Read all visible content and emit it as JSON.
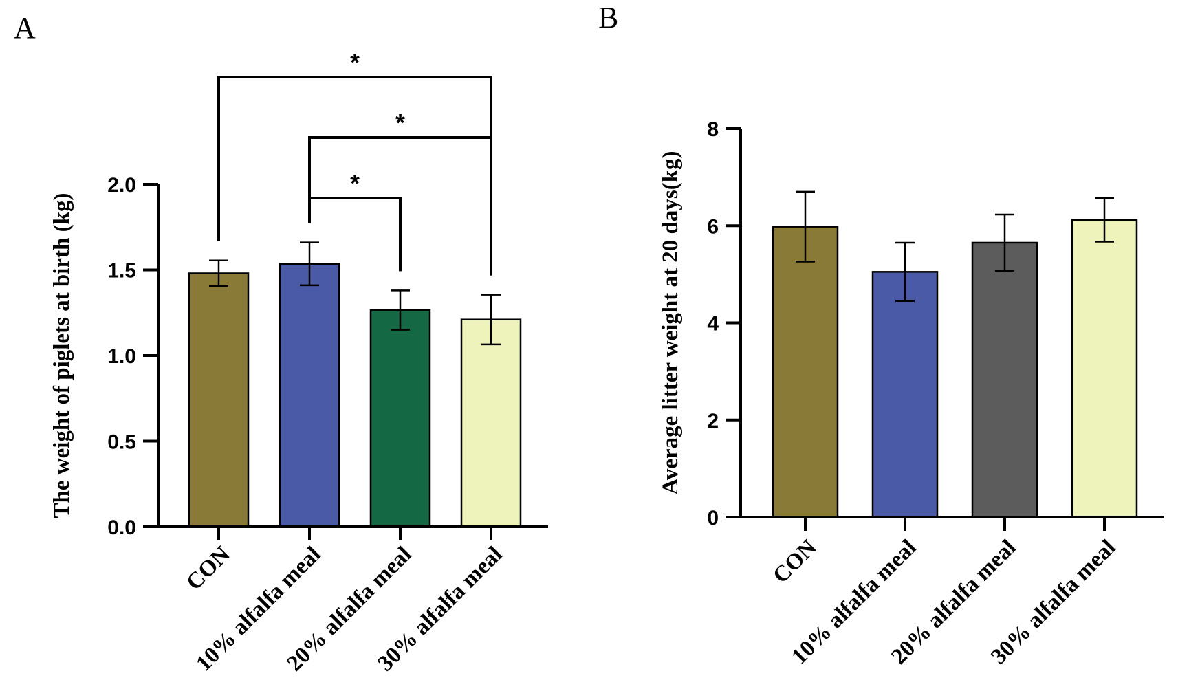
{
  "chart_data": [
    {
      "panel": "A",
      "type": "bar",
      "ylabel": "The weight of  piglets at birth (kg)",
      "categories": [
        "CON",
        "10% alfalfa meal",
        "20% alfalfa meal",
        "30% alfalfa meal"
      ],
      "values": [
        1.48,
        1.535,
        1.265,
        1.21
      ],
      "errors": [
        0.075,
        0.125,
        0.115,
        0.145
      ],
      "colors": [
        "#8a7a38",
        "#4a5aa6",
        "#146843",
        "#eef2bb"
      ],
      "ylim": [
        0,
        2.0
      ],
      "yticks": [
        "0.0",
        "0.5",
        "1.0",
        "1.5",
        "2.0"
      ],
      "ytick_values": [
        0,
        0.5,
        1.0,
        1.5,
        2.0
      ],
      "significance": [
        {
          "from": 0,
          "to": 3,
          "label": "*"
        },
        {
          "from": 1,
          "to": 3,
          "label": "*"
        },
        {
          "from": 1,
          "to": 2,
          "label": "*"
        }
      ]
    },
    {
      "panel": "B",
      "type": "bar",
      "ylabel": "Average litter weight at 20 days(kg)",
      "categories": [
        "CON",
        "10% alfalfa meal",
        "20% alfalfa meal",
        "30% alfalfa meal"
      ],
      "values": [
        5.98,
        5.05,
        5.65,
        6.12
      ],
      "errors": [
        0.72,
        0.6,
        0.58,
        0.45
      ],
      "colors": [
        "#8a7a38",
        "#4a5aa6",
        "#5c5c5c",
        "#eef2bb"
      ],
      "ylim": [
        0,
        8
      ],
      "yticks": [
        "0",
        "2",
        "4",
        "6",
        "8"
      ],
      "ytick_values": [
        0,
        2,
        4,
        6,
        8
      ],
      "significance": []
    }
  ]
}
